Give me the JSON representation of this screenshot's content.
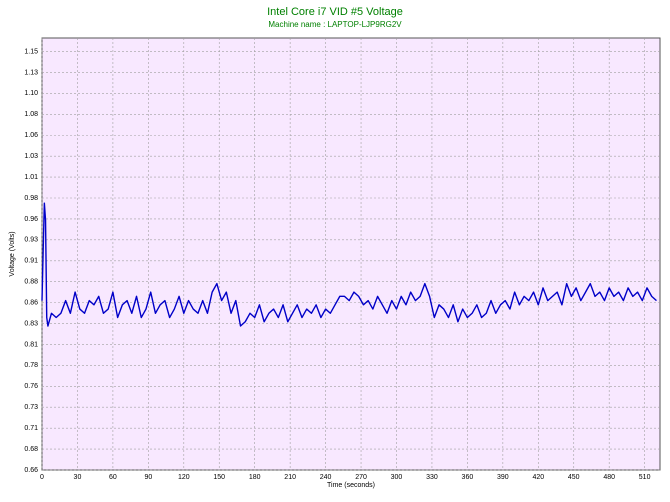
{
  "chart_data": {
    "type": "line",
    "title": "Intel Core i7 VID #5 Voltage",
    "subtitle": "Machine name : LAPTOP-LJP9RG2V",
    "xlabel": "Time (seconds)",
    "ylabel": "Voltage (Volts)",
    "xlim": [
      0,
      523
    ],
    "xticks": [
      0,
      30,
      60,
      90,
      120,
      150,
      180,
      210,
      240,
      270,
      300,
      330,
      360,
      390,
      420,
      450,
      480,
      510
    ],
    "ylim": [
      0.66,
      1.17
    ],
    "yticks": [
      0.66,
      {
        "value": 0.6847,
        "label": "0.68"
      },
      {
        "value": 0.7094,
        "label": "0.71"
      },
      {
        "value": 0.7341,
        "label": "0.73"
      },
      {
        "value": 0.7588,
        "label": "0.76"
      },
      {
        "value": 0.7835,
        "label": "0.78"
      },
      {
        "value": 0.8082,
        "label": "0.81"
      },
      {
        "value": 0.8329,
        "label": "0.83"
      },
      {
        "value": 0.8576,
        "label": "0.86"
      },
      {
        "value": 0.8823,
        "label": "0.88"
      },
      {
        "value": 0.907,
        "label": "0.91"
      },
      {
        "value": 0.9317,
        "label": "0.93"
      },
      {
        "value": 0.9564,
        "label": "0.96"
      },
      {
        "value": 0.9811,
        "label": "0.98"
      },
      {
        "value": 1.0058,
        "label": "1.01"
      },
      {
        "value": 1.0305,
        "label": "1.03"
      },
      {
        "value": 1.0552,
        "label": "1.06"
      },
      {
        "value": 1.0799,
        "label": "1.08"
      },
      {
        "value": 1.1046,
        "label": "1.10"
      },
      {
        "value": 1.1293,
        "label": "1.13"
      },
      {
        "value": 1.154,
        "label": "1.15"
      }
    ],
    "grid": true,
    "x": [
      0,
      1,
      2,
      3,
      4,
      5,
      8,
      12,
      16,
      20,
      24,
      28,
      32,
      36,
      40,
      44,
      48,
      52,
      56,
      60,
      64,
      68,
      72,
      76,
      80,
      84,
      88,
      92,
      96,
      100,
      104,
      108,
      112,
      116,
      120,
      124,
      128,
      132,
      136,
      140,
      144,
      148,
      152,
      156,
      160,
      164,
      168,
      172,
      176,
      180,
      184,
      188,
      192,
      196,
      200,
      204,
      208,
      212,
      216,
      220,
      224,
      228,
      232,
      236,
      240,
      244,
      248,
      252,
      256,
      260,
      264,
      268,
      272,
      276,
      280,
      284,
      288,
      292,
      296,
      300,
      304,
      308,
      312,
      316,
      320,
      324,
      328,
      332,
      336,
      340,
      344,
      348,
      352,
      356,
      360,
      364,
      368,
      372,
      376,
      380,
      384,
      388,
      392,
      396,
      400,
      404,
      408,
      412,
      416,
      420,
      424,
      428,
      432,
      436,
      440,
      444,
      448,
      452,
      456,
      460,
      464,
      468,
      472,
      476,
      480,
      484,
      488,
      492,
      496,
      500,
      504,
      508,
      512,
      516,
      520
    ],
    "series": [
      {
        "color": "#0000c8",
        "values": [
          0.86,
          0.92,
          0.975,
          0.955,
          0.84,
          0.83,
          0.845,
          0.84,
          0.845,
          0.86,
          0.845,
          0.87,
          0.85,
          0.845,
          0.86,
          0.855,
          0.865,
          0.845,
          0.85,
          0.87,
          0.84,
          0.855,
          0.86,
          0.845,
          0.865,
          0.84,
          0.85,
          0.87,
          0.845,
          0.855,
          0.86,
          0.84,
          0.85,
          0.865,
          0.845,
          0.86,
          0.85,
          0.845,
          0.86,
          0.845,
          0.87,
          0.88,
          0.86,
          0.87,
          0.845,
          0.86,
          0.83,
          0.835,
          0.845,
          0.84,
          0.855,
          0.835,
          0.845,
          0.85,
          0.84,
          0.855,
          0.835,
          0.845,
          0.855,
          0.84,
          0.85,
          0.845,
          0.855,
          0.84,
          0.85,
          0.845,
          0.855,
          0.865,
          0.865,
          0.86,
          0.87,
          0.865,
          0.855,
          0.86,
          0.85,
          0.865,
          0.855,
          0.845,
          0.86,
          0.85,
          0.865,
          0.855,
          0.87,
          0.86,
          0.865,
          0.88,
          0.865,
          0.84,
          0.855,
          0.85,
          0.84,
          0.855,
          0.835,
          0.85,
          0.84,
          0.845,
          0.855,
          0.84,
          0.845,
          0.86,
          0.845,
          0.855,
          0.86,
          0.85,
          0.87,
          0.855,
          0.865,
          0.86,
          0.87,
          0.855,
          0.875,
          0.86,
          0.865,
          0.87,
          0.855,
          0.88,
          0.865,
          0.875,
          0.86,
          0.87,
          0.88,
          0.865,
          0.87,
          0.86,
          0.875,
          0.865,
          0.87,
          0.86,
          0.875,
          0.865,
          0.87,
          0.86,
          0.875,
          0.865,
          0.86
        ]
      }
    ]
  }
}
